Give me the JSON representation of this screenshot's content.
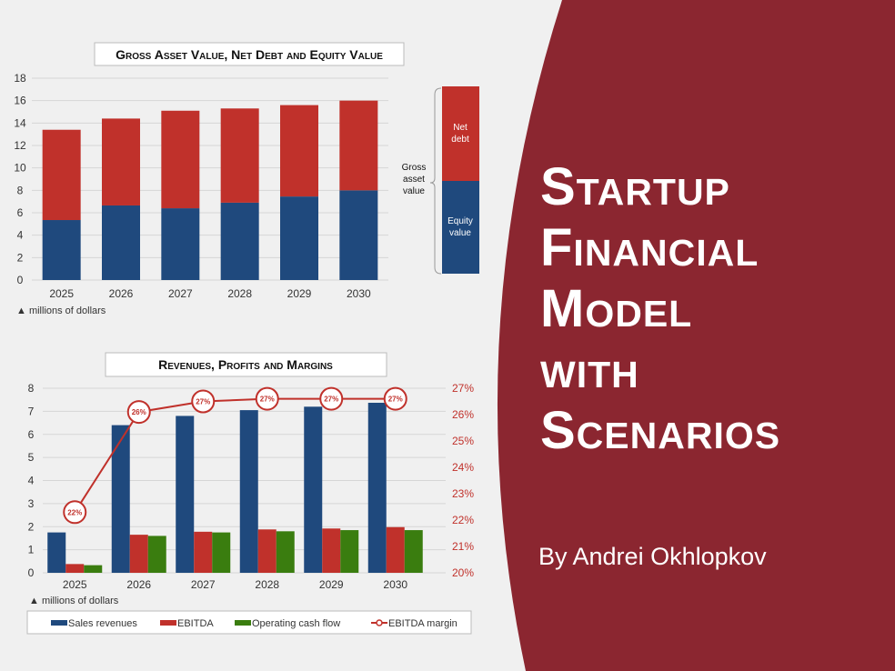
{
  "slide": {
    "title_lines": [
      "Startup",
      "Financial",
      "Model",
      "with",
      "Scenarios"
    ],
    "byline": "By Andrei Okhlopkov",
    "accent_color": "#8b2630"
  },
  "chart_data": [
    {
      "type": "bar",
      "stacked": true,
      "title": "Gross Asset Value, Net Debt and Equity Value",
      "categories": [
        "2025",
        "2026",
        "2027",
        "2028",
        "2029",
        "2030"
      ],
      "series": [
        {
          "name": "Equity value",
          "color": "#1f497d",
          "values": [
            5.35,
            6.65,
            6.4,
            6.9,
            7.45,
            8.0
          ]
        },
        {
          "name": "Net debt",
          "color": "#c0312b",
          "values": [
            8.05,
            7.75,
            8.7,
            8.4,
            8.15,
            8.0
          ]
        }
      ],
      "ylim": [
        0,
        18
      ],
      "yticks": [
        0,
        2,
        4,
        6,
        8,
        10,
        12,
        14,
        16,
        18
      ],
      "unit_note": "▲ millions of dollars",
      "grid": true,
      "legend": {
        "placement": "right",
        "bracket_label": "Gross asset value",
        "top_label": "Net debt",
        "bottom_label": "Equity value"
      }
    },
    {
      "type": "bar",
      "title": "Revenues, Profits and Margins",
      "categories": [
        "2025",
        "2026",
        "2027",
        "2028",
        "2029",
        "2030"
      ],
      "series": [
        {
          "name": "Sales revenues",
          "color": "#1f497d",
          "values": [
            1.75,
            6.4,
            6.8,
            7.05,
            7.2,
            7.37
          ]
        },
        {
          "name": "EBITDA",
          "color": "#c0312b",
          "values": [
            0.38,
            1.65,
            1.78,
            1.88,
            1.92,
            1.98
          ]
        },
        {
          "name": "Operating cash flow",
          "color": "#3a7d0f",
          "values": [
            0.33,
            1.6,
            1.75,
            1.8,
            1.85,
            1.85
          ]
        },
        {
          "name": "EBITDA margin",
          "type": "line",
          "axis": "right",
          "color": "#c0312b",
          "values": [
            22.3,
            26.1,
            26.5,
            26.6,
            26.6,
            26.6
          ],
          "labels": [
            "22%",
            "26%",
            "27%",
            "27%",
            "27%",
            "27%"
          ]
        }
      ],
      "ylim": [
        0,
        8
      ],
      "yticks": [
        0,
        1,
        2,
        3,
        4,
        5,
        6,
        7,
        8
      ],
      "y2lim": [
        20,
        27
      ],
      "y2ticks": [
        "20%",
        "21%",
        "22%",
        "23%",
        "24%",
        "25%",
        "26%",
        "27%"
      ],
      "unit_note": "▲ millions of dollars",
      "grid": true,
      "legend": {
        "placement": "bottom"
      }
    }
  ]
}
